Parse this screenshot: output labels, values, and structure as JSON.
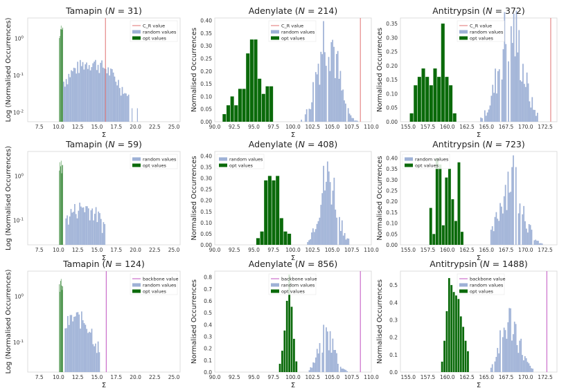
{
  "figure": {
    "ylabel_log": "Log (Normalised Occurrences)",
    "ylabel_lin": "Normalised Occurrences",
    "xlabel": "Σ"
  },
  "colors": {
    "random": "#9eb1d6",
    "opt": "#0a6a0a",
    "opt_light": "#3f8f3f",
    "cr_line": "#e07070",
    "backbone_line": "#c050c0"
  },
  "chart_data": [
    {
      "type": "bar",
      "scale": "log",
      "protein": "Tamapin",
      "N": "31",
      "title": "Tamapin (N = 31)",
      "xlim": [
        6,
        25.8
      ],
      "xticks": [
        "7.5",
        "10.0",
        "12.5",
        "15.0",
        "17.5",
        "20.0",
        "22.5",
        "25.0"
      ],
      "ylim_log": [
        -2.25,
        0.55
      ],
      "yticks": [
        {
          "exp": 0,
          "label": "10"
        },
        {
          "exp": -1,
          "label": "10"
        },
        {
          "exp": -2,
          "label": "10"
        }
      ],
      "opt": {
        "range": [
          10.1,
          10.6
        ],
        "peak": 2.2
      },
      "random": {
        "range": [
          10.6,
          19.2
        ],
        "peak": 0.22,
        "mode": 14.2,
        "spread": 2.3,
        "tail_to": 21
      },
      "vline": {
        "x": 16.1,
        "label": "C_R value",
        "kind": "cr"
      },
      "legend": [
        "C_R value",
        "random values",
        "opt values"
      ]
    },
    {
      "type": "bar",
      "scale": "linear",
      "protein": "Adenylate",
      "N": "214",
      "title": "Adenylate (N = 214)",
      "xlim": [
        90,
        110
      ],
      "xticks": [
        "90.0",
        "92.5",
        "95.0",
        "97.5",
        "100.0",
        "102.5",
        "105.0",
        "107.5",
        "110.0"
      ],
      "ylim": [
        0,
        0.41
      ],
      "yticks": [
        "0.00",
        "0.05",
        "0.10",
        "0.15",
        "0.20",
        "0.25",
        "0.30",
        "0.35",
        "0.40"
      ],
      "opt": {
        "x": [
          91.0,
          91.5,
          92.0,
          92.5,
          93.0,
          93.5,
          94.0,
          94.5,
          95.0,
          95.5,
          96.0,
          96.5,
          97.0
        ],
        "y": [
          0.03,
          0.065,
          0.1,
          0.065,
          0.13,
          0.13,
          0.27,
          0.325,
          0.325,
          0.17,
          0.11,
          0.14,
          0.14
        ]
      },
      "random": {
        "range": [
          101,
          108.3
        ],
        "peak": 0.36,
        "mode": 104.4,
        "spread": 1.25
      },
      "vline": {
        "x": 108.6,
        "label": "C_R value",
        "kind": "cr"
      },
      "legend": [
        "C_R value",
        "random values",
        "opt values"
      ]
    },
    {
      "type": "bar",
      "scale": "linear",
      "protein": "Antitrypsin",
      "N": "372",
      "title": "Antitrypsin (N = 372)",
      "xlim": [
        154,
        174
      ],
      "xticks": [
        "155.0",
        "157.5",
        "160.0",
        "162.5",
        "165.0",
        "167.5",
        "170.0",
        "172.5"
      ],
      "ylim": [
        0,
        0.37
      ],
      "yticks": [
        "0.00",
        "0.05",
        "0.10",
        "0.15",
        "0.20",
        "0.25",
        "0.30",
        "0.35"
      ],
      "opt": {
        "x": [
          155.2,
          155.7,
          156.2,
          156.7,
          157.2,
          157.7,
          158.2,
          158.7,
          159.2,
          159.7,
          160.2,
          160.7
        ],
        "y": [
          0.03,
          0.13,
          0.16,
          0.19,
          0.16,
          0.13,
          0.19,
          0.16,
          0.35,
          0.16,
          0.13,
          0.03
        ]
      },
      "random": {
        "range": [
          164.2,
          171.6
        ],
        "peak": 0.33,
        "mode": 168.1,
        "spread": 1.5
      },
      "vline": {
        "x": 173.2,
        "label": "C_R value",
        "kind": "cr"
      },
      "legend": [
        "C_R value",
        "random values",
        "opt values"
      ]
    },
    {
      "type": "bar",
      "scale": "log",
      "protein": "Tamapin",
      "N": "59",
      "title": "Tamapin (N = 59)",
      "xlim": [
        6,
        25.8
      ],
      "xticks": [
        "7.5",
        "10.0",
        "12.5",
        "15.0",
        "17.5",
        "20.0",
        "22.5",
        "25.0"
      ],
      "ylim_log": [
        -1.55,
        0.55
      ],
      "yticks": [
        {
          "exp": 0,
          "label": "10"
        },
        {
          "exp": -1,
          "label": "10"
        }
      ],
      "opt": {
        "range": [
          10.1,
          10.6
        ],
        "peak": 2.2
      },
      "random": {
        "range": [
          10.9,
          16.1
        ],
        "peak": 0.2,
        "mode": 13.2,
        "spread": 2.0
      },
      "legend": [
        "random values",
        "opt values"
      ]
    },
    {
      "type": "bar",
      "scale": "linear",
      "protein": "Adenylate",
      "N": "408",
      "title": "Adenylate (N = 408)",
      "xlim": [
        90,
        110
      ],
      "xticks": [
        "90.0",
        "92.5",
        "95.0",
        "97.5",
        "100.0",
        "102.5",
        "105.0",
        "107.5",
        "110.0"
      ],
      "ylim": [
        0,
        0.42
      ],
      "yticks": [
        "0.00",
        "0.05",
        "0.10",
        "0.15",
        "0.20",
        "0.25",
        "0.30",
        "0.35",
        "0.40"
      ],
      "opt": {
        "x": [
          95.3,
          95.8,
          96.3,
          96.8,
          97.3,
          97.8,
          98.3,
          98.8,
          99.3
        ],
        "y": [
          0.03,
          0.06,
          0.29,
          0.31,
          0.29,
          0.31,
          0.12,
          0.06,
          0.05
        ]
      },
      "random": {
        "range": [
          101.8,
          107.2
        ],
        "peak": 0.3,
        "mode": 104.5,
        "spread": 1.15
      },
      "legend": [
        "random values",
        "opt values"
      ]
    },
    {
      "type": "bar",
      "scale": "linear",
      "protein": "Antitrypsin",
      "N": "723",
      "title": "Antitrypsin (N = 723)",
      "xlim": [
        154,
        174
      ],
      "xticks": [
        "155.0",
        "157.5",
        "160.0",
        "162.5",
        "165.0",
        "167.5",
        "170.0",
        "172.5"
      ],
      "ylim": [
        0,
        0.43
      ],
      "yticks": [
        "0.00",
        "0.05",
        "0.10",
        "0.15",
        "0.20",
        "0.25",
        "0.30",
        "0.35",
        "0.40"
      ],
      "opt": {
        "x": [
          157.7,
          158.1,
          158.5,
          158.9,
          159.3,
          159.7,
          160.1,
          160.5,
          160.9,
          161.3,
          161.7
        ],
        "y": [
          0.17,
          0.05,
          0.4,
          0.37,
          0.09,
          0.31,
          0.35,
          0.21,
          0.11,
          0.38,
          0.06
        ]
      },
      "random": {
        "range": [
          165.5,
          172.2
        ],
        "peak": 0.32,
        "mode": 168.2,
        "spread": 1.35
      },
      "legend": [
        "random values",
        "opt values"
      ]
    },
    {
      "type": "bar",
      "scale": "log",
      "protein": "Tamapin",
      "N": "124",
      "title": "Tamapin (N = 124)",
      "xlim": [
        6,
        25.8
      ],
      "xticks": [
        "7.5",
        "10.0",
        "12.5",
        "15.0",
        "17.5",
        "20.0",
        "22.5",
        "25.0"
      ],
      "ylim_log": [
        -1.65,
        0.55
      ],
      "yticks": [
        {
          "exp": 0,
          "label": "10"
        },
        {
          "exp": -1,
          "label": "10"
        }
      ],
      "opt": {
        "range": [
          10.1,
          10.6
        ],
        "peak": 2.4
      },
      "random": {
        "range": [
          10.8,
          15.4
        ],
        "peak": 0.35,
        "mode": 12.4,
        "spread": 1.6
      },
      "vline": {
        "x": 16.2,
        "label": "backbone value",
        "kind": "backbone"
      },
      "legend": [
        "backbone value",
        "random values",
        "opt values"
      ]
    },
    {
      "type": "bar",
      "scale": "linear",
      "protein": "Adenylate",
      "N": "856",
      "title": "Adenylate (N = 856)",
      "xlim": [
        90,
        110
      ],
      "xticks": [
        "90.0",
        "92.5",
        "95.0",
        "97.5",
        "100.0",
        "102.5",
        "105.0",
        "107.5",
        "110.0"
      ],
      "ylim": [
        0,
        0.85
      ],
      "yticks": [
        "0.0",
        "0.1",
        "0.2",
        "0.3",
        "0.4",
        "0.5",
        "0.6",
        "0.7",
        "0.8"
      ],
      "opt": {
        "x": [
          98.2,
          98.5,
          98.8,
          99.1,
          99.4,
          99.7,
          100.0,
          100.3
        ],
        "y": [
          0.07,
          0.18,
          0.35,
          0.6,
          0.82,
          0.55,
          0.28,
          0.09
        ]
      },
      "random": {
        "range": [
          102.0,
          107.0
        ],
        "peak": 0.3,
        "mode": 104.3,
        "spread": 1.0
      },
      "vline": {
        "x": 108.6,
        "label": "backbone value",
        "kind": "backbone"
      },
      "legend": [
        "backbone value",
        "random values",
        "opt values"
      ]
    },
    {
      "type": "bar",
      "scale": "linear",
      "protein": "Antitrypsin",
      "N": "1488",
      "title": "Antitrypsin (N = 1488)",
      "xlim": [
        154,
        174
      ],
      "xticks": [
        "155.0",
        "157.5",
        "160.0",
        "162.5",
        "165.0",
        "167.5",
        "170.0",
        "172.5"
      ],
      "ylim": [
        0,
        0.58
      ],
      "yticks": [
        "0.0",
        "0.1",
        "0.2",
        "0.3",
        "0.4",
        "0.5"
      ],
      "opt": {
        "x": [
          159.2,
          159.5,
          159.8,
          160.1,
          160.4,
          160.7,
          161.0,
          161.3,
          161.6,
          161.9,
          162.2,
          162.5
        ],
        "y": [
          0.06,
          0.18,
          0.35,
          0.54,
          0.5,
          0.46,
          0.44,
          0.42,
          0.32,
          0.26,
          0.18,
          0.12
        ]
      },
      "random": {
        "range": [
          165.5,
          171.0
        ],
        "peak": 0.29,
        "mode": 168.0,
        "spread": 1.2
      },
      "vline": {
        "x": 172.7,
        "label": "backbone value",
        "kind": "backbone"
      },
      "legend": [
        "backbone value",
        "random values",
        "opt values"
      ]
    }
  ]
}
